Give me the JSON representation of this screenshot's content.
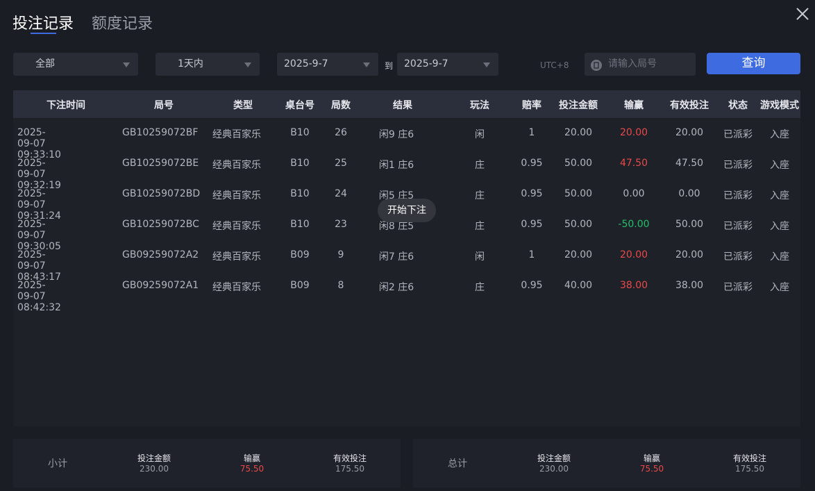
{
  "tabs": [
    "投注记录",
    "额度记录"
  ],
  "filters": {
    "type": "全部",
    "range": "1天内",
    "date_from": "2025-9-7",
    "to": "到",
    "date_to": "2025-9-7",
    "timezone": "UTC+8",
    "round_placeholder": "请输入局号",
    "search": "查询"
  },
  "table": {
    "headers": [
      "下注时间",
      "局号",
      "类型",
      "桌台号",
      "局数",
      "结果",
      "玩法",
      "赔率",
      "投注金额",
      "输赢",
      "有效投注",
      "状态",
      "游戏模式"
    ],
    "rows": [
      [
        "2025-09-07 09:33:10",
        "GB10259072BF",
        "经典百家乐",
        "B10",
        "26",
        "闲9 庄6",
        "闲",
        "1",
        "20.00",
        "20.00",
        "20.00",
        "已派彩",
        "入座"
      ],
      [
        "2025-09-07 09:32:19",
        "GB10259072BE",
        "经典百家乐",
        "B10",
        "25",
        "闲1 庄6",
        "庄",
        "0.95",
        "50.00",
        "47.50",
        "47.50",
        "已派彩",
        "入座"
      ],
      [
        "2025-09-07 09:31:24",
        "GB10259072BD",
        "经典百家乐",
        "B10",
        "24",
        "闲5 庄5",
        "庄",
        "0.95",
        "50.00",
        "0.00",
        "0.00",
        "已派彩",
        "入座"
      ],
      [
        "2025-09-07 09:30:05",
        "GB10259072BC",
        "经典百家乐",
        "B10",
        "23",
        "闲8 庄5",
        "庄",
        "0.95",
        "50.00",
        "-50.00",
        "50.00",
        "已派彩",
        "入座"
      ],
      [
        "2025-09-07 08:43:17",
        "GB09259072A2",
        "经典百家乐",
        "B09",
        "9",
        "闲7 庄6",
        "闲",
        "1",
        "20.00",
        "20.00",
        "20.00",
        "已派彩",
        "入座"
      ],
      [
        "2025-09-07 08:42:32",
        "GB09259072A1",
        "经典百家乐",
        "B09",
        "8",
        "闲2 庄6",
        "庄",
        "0.95",
        "40.00",
        "38.00",
        "38.00",
        "已派彩",
        "入座"
      ]
    ]
  },
  "toast": "开始下注",
  "subtotal": {
    "label": "小计",
    "items": [
      {
        "label": "投注金额",
        "value": "230.00"
      },
      {
        "label": "输赢",
        "value": "75.50"
      },
      {
        "label": "有效投注",
        "value": "175.50"
      }
    ]
  },
  "total": {
    "label": "总计",
    "items": [
      {
        "label": "投注金额",
        "value": "230.00"
      },
      {
        "label": "输赢",
        "value": "75.50"
      },
      {
        "label": "有效投注",
        "value": "175.50"
      }
    ]
  }
}
